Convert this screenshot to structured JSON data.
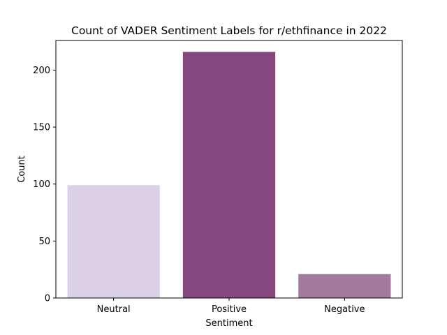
{
  "chart_data": {
    "type": "bar",
    "title": "Count of VADER Sentiment Labels for r/ethfinance in 2022",
    "xlabel": "Sentiment",
    "ylabel": "Count",
    "categories": [
      "Neutral",
      "Positive",
      "Negative"
    ],
    "values": [
      99,
      216,
      21
    ],
    "colors": [
      "#dbd1e6",
      "#83477e",
      "#a17a9e"
    ],
    "ylim": [
      0,
      226
    ],
    "yticks": [
      0,
      50,
      100,
      150,
      200
    ],
    "grid": false,
    "legend": "none"
  }
}
